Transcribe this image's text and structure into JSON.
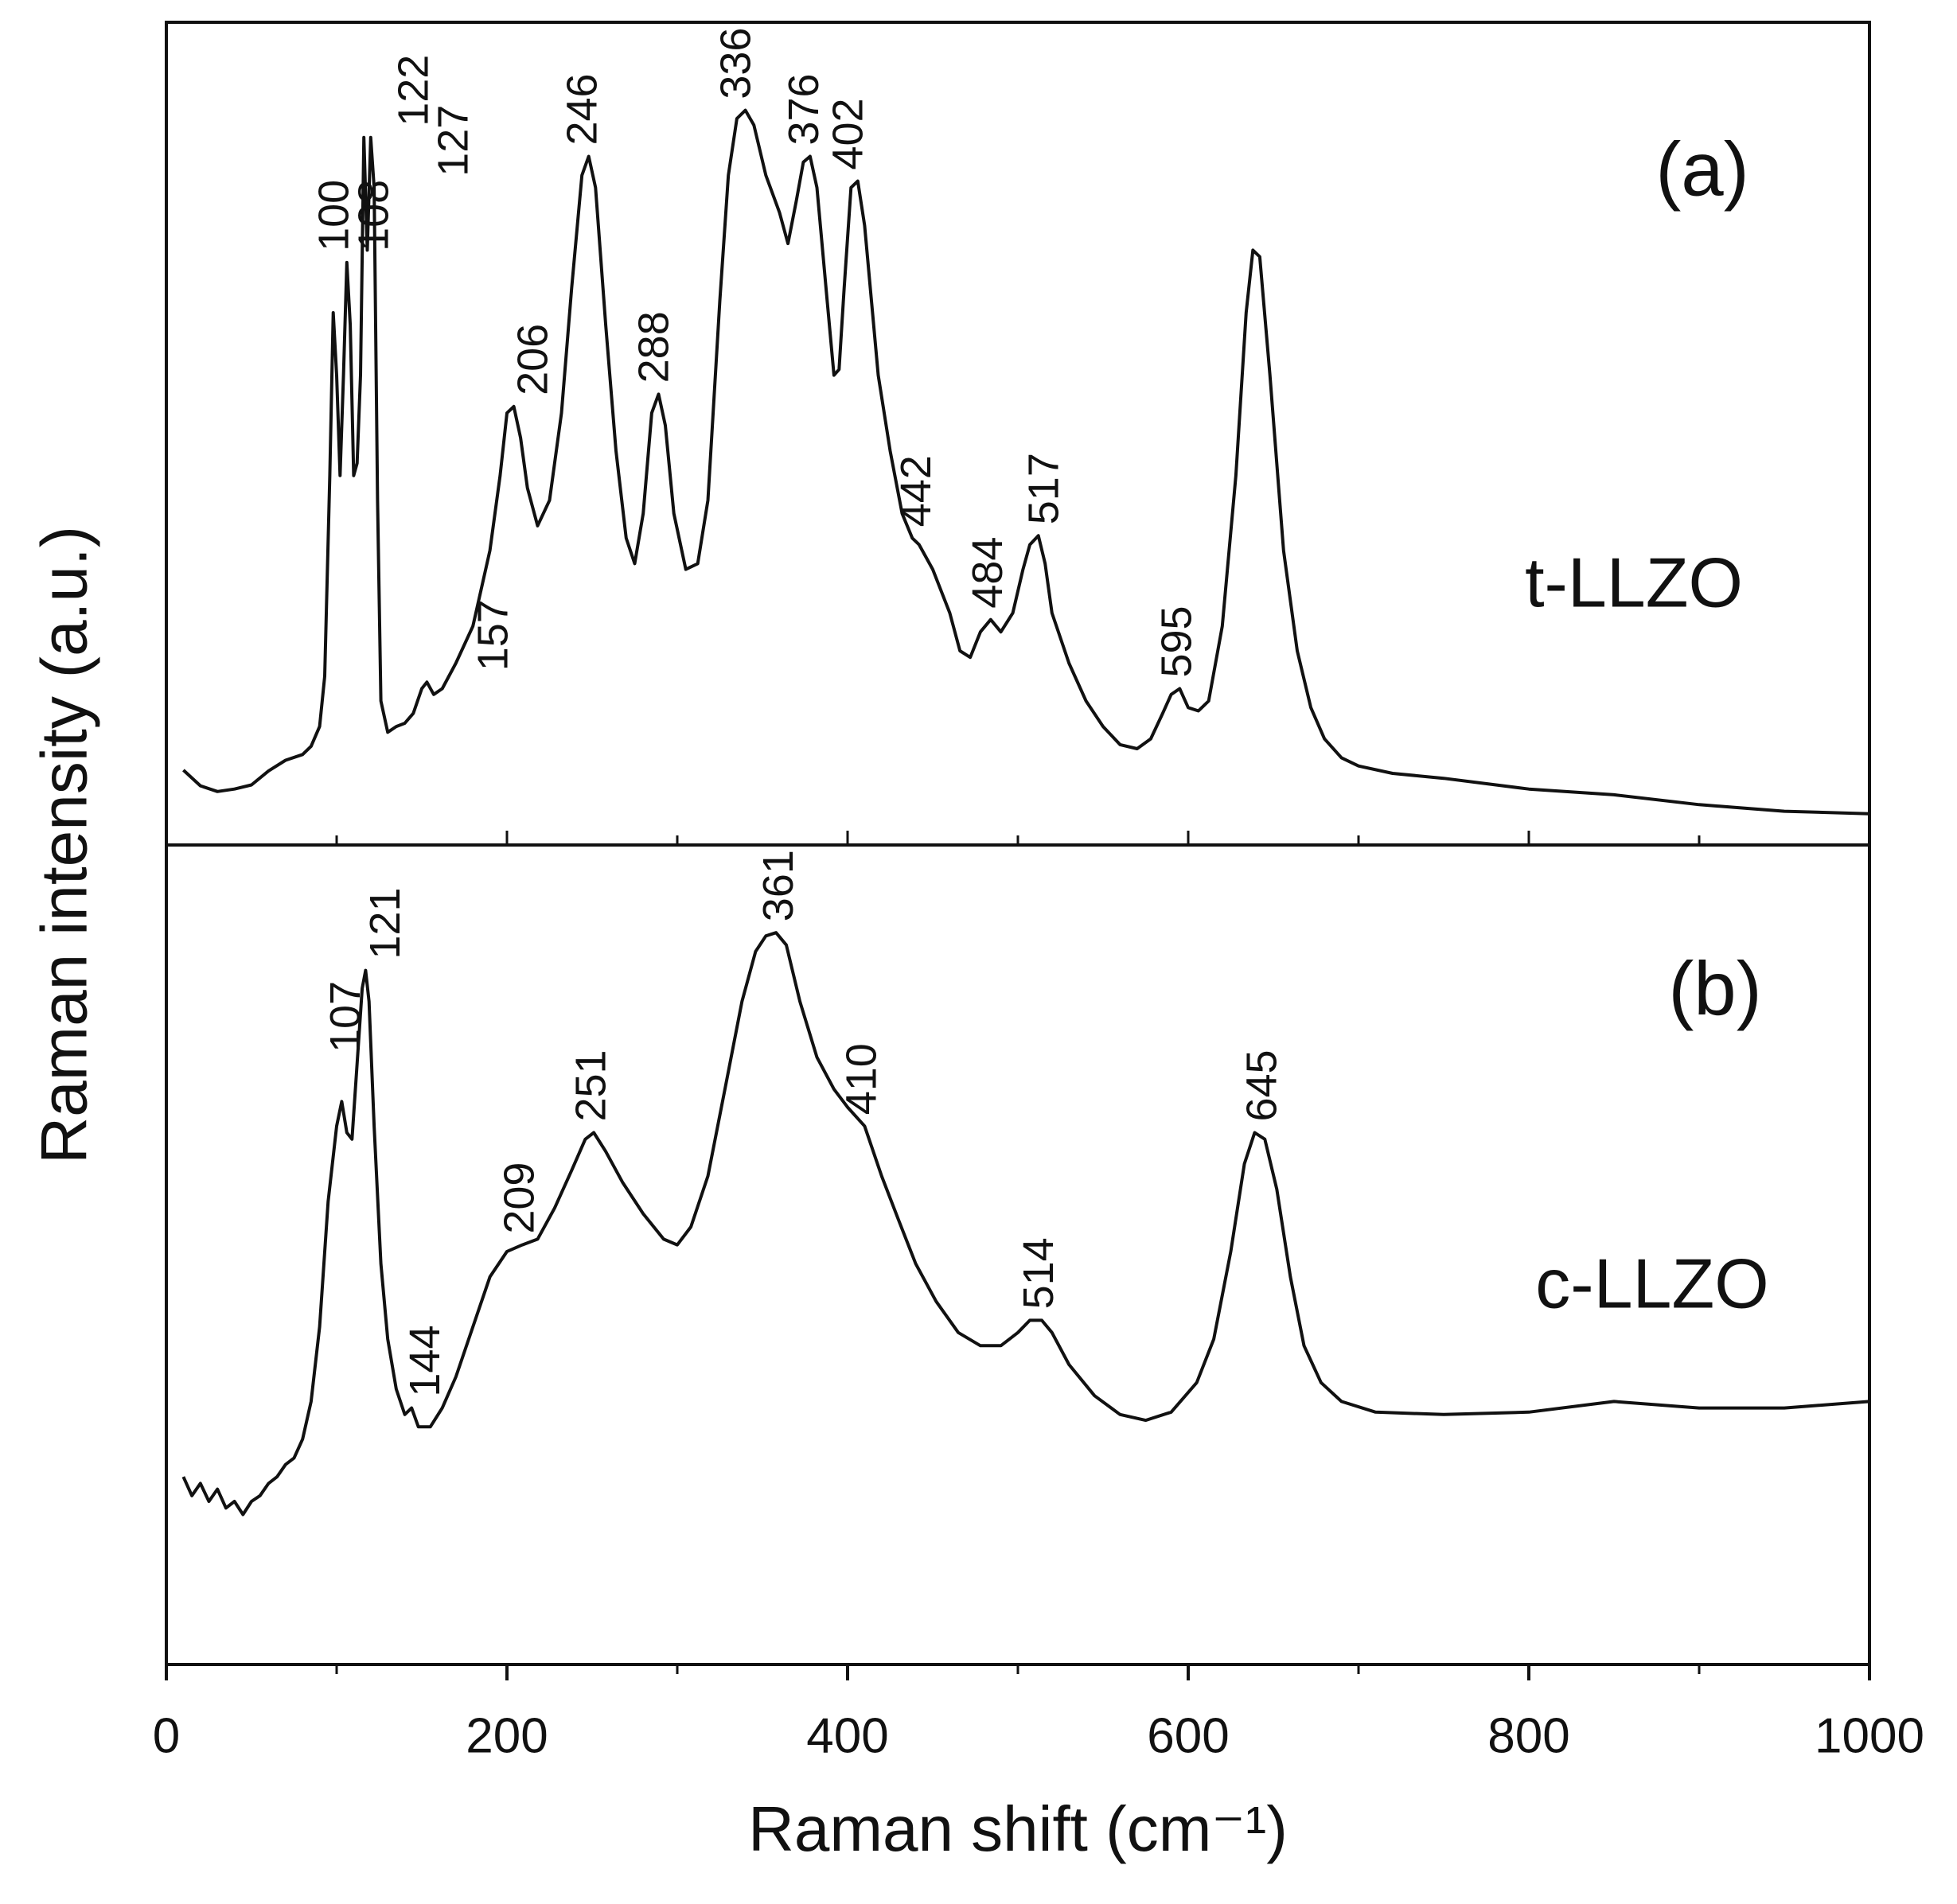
{
  "chart_data": [
    {
      "type": "line",
      "panel": "(a)",
      "ylabel": "Raman intensity (a.u.)",
      "xlim": [
        0,
        1000
      ],
      "ylim": [
        0,
        100
      ],
      "x": [
        10,
        20,
        30,
        40,
        50,
        60,
        70,
        80,
        85,
        90,
        93,
        96,
        98,
        100,
        102,
        104,
        106,
        108,
        110,
        112,
        114,
        116,
        118,
        120,
        122,
        124,
        126,
        130,
        135,
        140,
        145,
        150,
        153,
        157,
        162,
        170,
        180,
        190,
        196,
        200,
        204,
        208,
        212,
        218,
        225,
        232,
        238,
        244,
        248,
        252,
        258,
        264,
        270,
        275,
        280,
        285,
        289,
        293,
        298,
        305,
        312,
        318,
        325,
        330,
        335,
        340,
        345,
        352,
        360,
        365,
        370,
        374,
        378,
        382,
        388,
        392,
        395,
        398,
        402,
        406,
        410,
        418,
        425,
        432,
        438,
        442,
        450,
        460,
        466,
        472,
        478,
        484,
        490,
        497,
        503,
        507,
        512,
        516,
        520,
        530,
        540,
        550,
        560,
        570,
        578,
        585,
        590,
        595,
        600,
        606,
        612,
        620,
        628,
        634,
        638,
        642,
        648,
        656,
        664,
        672,
        680,
        690,
        700,
        720,
        750,
        800,
        850,
        900,
        950,
        1000
      ],
      "series": [
        {
          "name": "t-LLZO",
          "color": "#111111",
          "values": [
            9.1,
            7.2,
            6.5,
            6.8,
            7.3,
            9.0,
            10.3,
            11.0,
            12.0,
            14.4,
            20.5,
            44.9,
            64.7,
            57.1,
            44.9,
            57.1,
            70.8,
            63.2,
            44.9,
            46.4,
            57.1,
            86.0,
            72.3,
            86.0,
            79.9,
            41.9,
            17.5,
            13.7,
            14.4,
            14.8,
            16.0,
            19.0,
            19.8,
            18.3,
            19.0,
            22.1,
            26.6,
            35.8,
            44.9,
            52.5,
            53.3,
            49.5,
            43.4,
            38.8,
            41.9,
            52.5,
            67.7,
            81.4,
            83.7,
            79.9,
            63.2,
            47.9,
            37.3,
            34.2,
            40.3,
            52.5,
            54.8,
            51.0,
            40.3,
            33.5,
            34.2,
            41.9,
            66.2,
            81.4,
            88.3,
            89.3,
            87.5,
            81.4,
            76.9,
            73.1,
            78.4,
            83.0,
            83.7,
            79.9,
            66.2,
            57.1,
            57.8,
            67.7,
            79.9,
            80.7,
            75.3,
            57.1,
            47.9,
            40.3,
            37.3,
            36.5,
            33.5,
            28.2,
            23.6,
            22.8,
            25.9,
            27.4,
            25.9,
            28.2,
            33.5,
            36.5,
            37.6,
            34.2,
            28.2,
            22.1,
            17.5,
            14.4,
            12.2,
            11.7,
            12.9,
            16.0,
            18.3,
            19.0,
            16.7,
            16.3,
            17.5,
            26.6,
            44.9,
            64.7,
            72.3,
            71.5,
            57.1,
            35.8,
            23.6,
            16.7,
            12.9,
            10.6,
            9.6,
            8.7,
            8.1,
            6.8,
            6.1,
            4.9,
            4.1,
            3.8
          ]
        }
      ],
      "peaks": [
        100,
        108,
        122,
        127,
        157,
        206,
        246,
        288,
        336,
        376,
        402,
        442,
        484,
        517,
        595
      ]
    },
    {
      "type": "line",
      "panel": "(b)",
      "xlabel": "Raman shift (cm⁻¹)",
      "xlim": [
        0,
        1000
      ],
      "ylim": [
        0,
        100
      ],
      "xticks": [
        0,
        200,
        400,
        600,
        800,
        1000
      ],
      "xminorticks": [
        100,
        300,
        500,
        700,
        900
      ],
      "x": [
        10,
        15,
        20,
        25,
        30,
        35,
        40,
        45,
        50,
        55,
        60,
        65,
        70,
        75,
        80,
        85,
        90,
        95,
        100,
        103,
        106,
        109,
        112,
        115,
        117,
        119,
        122,
        126,
        130,
        135,
        140,
        144,
        148,
        155,
        162,
        170,
        180,
        190,
        200,
        209,
        218,
        228,
        238,
        246,
        251,
        258,
        268,
        280,
        292,
        300,
        308,
        318,
        328,
        338,
        346,
        352,
        358,
        364,
        372,
        382,
        392,
        400,
        410,
        420,
        430,
        440,
        452,
        465,
        478,
        490,
        500,
        507,
        514,
        520,
        530,
        545,
        560,
        575,
        590,
        605,
        615,
        625,
        633,
        639,
        645,
        652,
        660,
        668,
        678,
        690,
        710,
        750,
        800,
        850,
        900,
        950,
        1000
      ],
      "series": [
        {
          "name": "c-LLZO",
          "color": "#111111",
          "values": [
            22.9,
            20.6,
            22.1,
            19.9,
            21.4,
            19.1,
            19.9,
            18.3,
            19.9,
            20.6,
            22.1,
            22.9,
            24.4,
            25.2,
            27.5,
            32.1,
            41.2,
            56.5,
            65.7,
            68.7,
            64.9,
            64.1,
            73.3,
            82.5,
            84.7,
            80.9,
            65.7,
            48.9,
            39.7,
            33.6,
            30.5,
            31.3,
            29.0,
            29.0,
            31.3,
            35.1,
            41.2,
            47.3,
            50.4,
            51.2,
            51.9,
            55.7,
            60.3,
            64.1,
            64.9,
            62.6,
            58.8,
            55.0,
            51.9,
            51.2,
            53.4,
            59.6,
            70.2,
            80.9,
            87.0,
            88.9,
            89.3,
            87.8,
            80.9,
            74.1,
            70.2,
            68.0,
            65.7,
            59.6,
            54.2,
            48.9,
            44.3,
            40.5,
            38.9,
            38.9,
            40.5,
            42.0,
            42.0,
            40.5,
            36.6,
            32.8,
            30.5,
            29.8,
            30.8,
            34.4,
            39.7,
            50.4,
            61.1,
            64.9,
            64.1,
            58.0,
            47.3,
            38.9,
            34.4,
            32.1,
            30.8,
            30.5,
            30.8,
            32.1,
            31.3,
            31.3,
            32.1
          ]
        }
      ],
      "peaks": [
        107,
        121,
        144,
        209,
        251,
        361,
        410,
        514,
        645
      ]
    }
  ]
}
